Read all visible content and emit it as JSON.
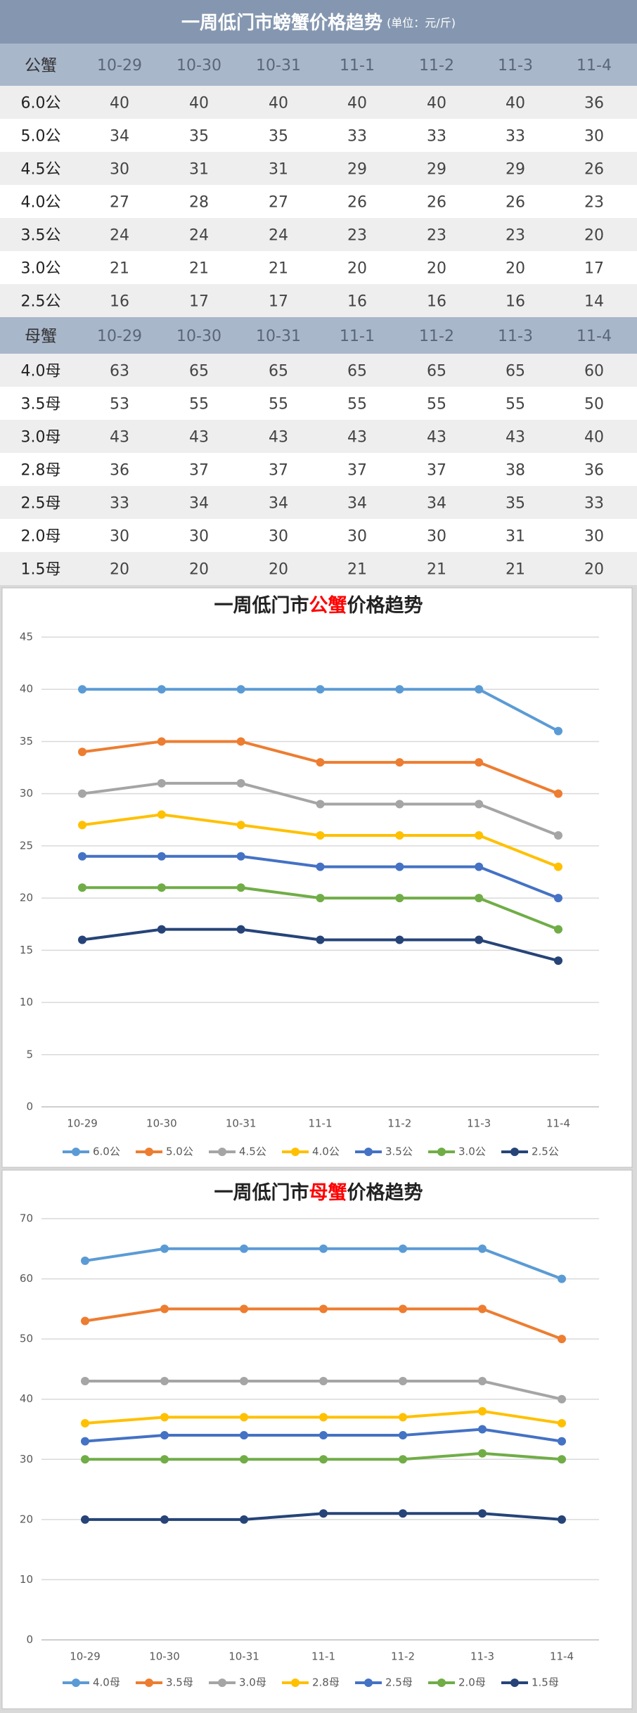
{
  "header": {
    "title": "一周低门市螃蟹价格趋势",
    "unit": "(单位：元/斤)"
  },
  "tables": [
    {
      "header": [
        "公蟹",
        "10-29",
        "10-30",
        "10-31",
        "11-1",
        "11-2",
        "11-3",
        "11-4"
      ],
      "rows": [
        [
          "6.0公",
          40,
          40,
          40,
          40,
          40,
          40,
          36
        ],
        [
          "5.0公",
          34,
          35,
          35,
          33,
          33,
          33,
          30
        ],
        [
          "4.5公",
          30,
          31,
          31,
          29,
          29,
          29,
          26
        ],
        [
          "4.0公",
          27,
          28,
          27,
          26,
          26,
          26,
          23
        ],
        [
          "3.5公",
          24,
          24,
          24,
          23,
          23,
          23,
          20
        ],
        [
          "3.0公",
          21,
          21,
          21,
          20,
          20,
          20,
          17
        ],
        [
          "2.5公",
          16,
          17,
          17,
          16,
          16,
          16,
          14
        ]
      ]
    },
    {
      "header": [
        "母蟹",
        "10-29",
        "10-30",
        "10-31",
        "11-1",
        "11-2",
        "11-3",
        "11-4"
      ],
      "rows": [
        [
          "4.0母",
          63,
          65,
          65,
          65,
          65,
          65,
          60
        ],
        [
          "3.5母",
          53,
          55,
          55,
          55,
          55,
          55,
          50
        ],
        [
          "3.0母",
          43,
          43,
          43,
          43,
          43,
          43,
          40
        ],
        [
          "2.8母",
          36,
          37,
          37,
          37,
          37,
          38,
          36
        ],
        [
          "2.5母",
          33,
          34,
          34,
          34,
          34,
          35,
          33
        ],
        [
          "2.0母",
          30,
          30,
          30,
          30,
          30,
          31,
          30
        ],
        [
          "1.5母",
          20,
          20,
          20,
          21,
          21,
          21,
          20
        ]
      ]
    }
  ],
  "chart_data": [
    {
      "type": "line",
      "title": [
        "一周低门市",
        "公蟹",
        "价格趋势"
      ],
      "categories": [
        "10-29",
        "10-30",
        "10-31",
        "11-1",
        "11-2",
        "11-3",
        "11-4"
      ],
      "ylim": [
        0,
        45
      ],
      "yticks": [
        0,
        5,
        10,
        15,
        20,
        25,
        30,
        35,
        40,
        45
      ],
      "grid": true,
      "legend": "bottom",
      "series": [
        {
          "name": "6.0公",
          "color": "#5b9bd5",
          "values": [
            40,
            40,
            40,
            40,
            40,
            40,
            36
          ]
        },
        {
          "name": "5.0公",
          "color": "#ed7d31",
          "values": [
            34,
            35,
            35,
            33,
            33,
            33,
            30
          ]
        },
        {
          "name": "4.5公",
          "color": "#a5a5a5",
          "values": [
            30,
            31,
            31,
            29,
            29,
            29,
            26
          ]
        },
        {
          "name": "4.0公",
          "color": "#ffc000",
          "values": [
            27,
            28,
            27,
            26,
            26,
            26,
            23
          ]
        },
        {
          "name": "3.5公",
          "color": "#4472c4",
          "values": [
            24,
            24,
            24,
            23,
            23,
            23,
            20
          ]
        },
        {
          "name": "3.0公",
          "color": "#70ad47",
          "values": [
            21,
            21,
            21,
            20,
            20,
            20,
            17
          ]
        },
        {
          "name": "2.5公",
          "color": "#264478",
          "values": [
            16,
            17,
            17,
            16,
            16,
            16,
            14
          ]
        }
      ]
    },
    {
      "type": "line",
      "title": [
        "一周低门市",
        "母蟹",
        "价格趋势"
      ],
      "categories": [
        "10-29",
        "10-30",
        "10-31",
        "11-1",
        "11-2",
        "11-3",
        "11-4"
      ],
      "ylim": [
        0,
        70
      ],
      "yticks": [
        0,
        10,
        20,
        30,
        40,
        50,
        60,
        70
      ],
      "grid": true,
      "legend": "bottom",
      "series": [
        {
          "name": "4.0母",
          "color": "#5b9bd5",
          "values": [
            63,
            65,
            65,
            65,
            65,
            65,
            60
          ]
        },
        {
          "name": "3.5母",
          "color": "#ed7d31",
          "values": [
            53,
            55,
            55,
            55,
            55,
            55,
            50
          ]
        },
        {
          "name": "3.0母",
          "color": "#a5a5a5",
          "values": [
            43,
            43,
            43,
            43,
            43,
            43,
            40
          ]
        },
        {
          "name": "2.8母",
          "color": "#ffc000",
          "values": [
            36,
            37,
            37,
            37,
            37,
            38,
            36
          ]
        },
        {
          "name": "2.5母",
          "color": "#4472c4",
          "values": [
            33,
            34,
            34,
            34,
            34,
            35,
            33
          ]
        },
        {
          "name": "2.0母",
          "color": "#70ad47",
          "values": [
            30,
            30,
            30,
            30,
            30,
            31,
            30
          ]
        },
        {
          "name": "1.5母",
          "color": "#264478",
          "values": [
            20,
            20,
            20,
            21,
            21,
            21,
            20
          ]
        }
      ]
    }
  ]
}
